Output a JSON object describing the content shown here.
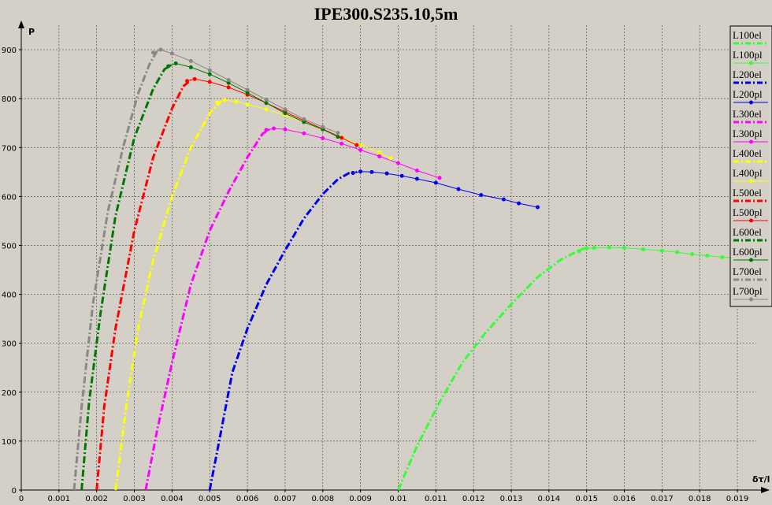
{
  "chart_data": {
    "type": "line",
    "title": "IPE300.S235.10,5m",
    "xlabel": "δτ/l",
    "ylabel": "P",
    "xlim": [
      0,
      0.0195
    ],
    "ylim": [
      0,
      950
    ],
    "xticks": [
      0,
      0.001,
      0.002,
      0.003,
      0.004,
      0.005,
      0.006,
      0.007,
      0.008,
      0.009,
      0.01,
      0.011,
      0.012,
      0.013,
      0.014,
      0.015,
      0.016,
      0.017,
      0.018,
      0.019
    ],
    "xtick_labels": [
      "0",
      "0.001",
      "0.002",
      "0.003",
      "0.004",
      "0.005",
      "0.006",
      "0.007",
      "0.008",
      "0.009",
      "0.01",
      "0.011",
      "0.012",
      "0.013",
      "0.014",
      "0.015",
      "0.016",
      "0.017",
      "0.018",
      "0.019"
    ],
    "yticks": [
      0,
      100,
      200,
      300,
      400,
      500,
      600,
      700,
      800,
      900
    ],
    "ytick_labels": [
      "0",
      "100",
      "200",
      "300",
      "400",
      "500",
      "600",
      "700",
      "800",
      "900"
    ],
    "grid": true,
    "legend_position": "right",
    "series": [
      {
        "name": "L100el",
        "color": "#33ff33",
        "style": "dashdot",
        "x": [
          0.01,
          0.0105,
          0.0111,
          0.0117,
          0.0123,
          0.013,
          0.0137,
          0.0143,
          0.0148,
          0.015
        ],
        "y": [
          0,
          90,
          180,
          260,
          320,
          380,
          435,
          470,
          490,
          495
        ]
      },
      {
        "name": "L100pl",
        "color": "#33ff33",
        "style": "dots",
        "x": [
          0.0148,
          0.015,
          0.0152,
          0.0156,
          0.016,
          0.0165,
          0.017,
          0.0174,
          0.0178,
          0.0182,
          0.0186,
          0.0195
        ],
        "y": [
          488,
          494,
          495,
          496,
          495,
          492,
          489,
          486,
          482,
          479,
          476,
          472
        ]
      },
      {
        "name": "L200el",
        "color": "#0000ee",
        "style": "dashdot",
        "x": [
          0.005,
          0.0053,
          0.0056,
          0.006,
          0.0065,
          0.007,
          0.0075,
          0.008,
          0.0084,
          0.0087,
          0.0089
        ],
        "y": [
          0,
          120,
          240,
          330,
          420,
          490,
          555,
          605,
          635,
          648,
          650
        ]
      },
      {
        "name": "L200pl",
        "color": "#0000ee",
        "style": "dots",
        "x": [
          0.0088,
          0.009,
          0.0093,
          0.0097,
          0.0101,
          0.0105,
          0.011,
          0.0116,
          0.0122,
          0.0128,
          0.0132,
          0.0137
        ],
        "y": [
          648,
          651,
          650,
          647,
          642,
          636,
          628,
          615,
          603,
          594,
          586,
          578
        ]
      },
      {
        "name": "L300el",
        "color": "#ff00ff",
        "style": "dashdot",
        "x": [
          0.0033,
          0.0036,
          0.004,
          0.0045,
          0.005,
          0.0055,
          0.006,
          0.0064,
          0.0066
        ],
        "y": [
          0,
          120,
          260,
          420,
          530,
          610,
          680,
          728,
          738
        ]
      },
      {
        "name": "L300pl",
        "color": "#ff00ff",
        "style": "dots",
        "x": [
          0.0065,
          0.0067,
          0.007,
          0.0075,
          0.008,
          0.0085,
          0.009,
          0.0095,
          0.01,
          0.0105,
          0.0111
        ],
        "y": [
          736,
          739,
          737,
          729,
          719,
          708,
          695,
          682,
          668,
          653,
          638
        ]
      },
      {
        "name": "L400el",
        "color": "#ffff00",
        "style": "dashdot",
        "x": [
          0.0025,
          0.0028,
          0.0031,
          0.0035,
          0.004,
          0.0045,
          0.005,
          0.0053
        ],
        "y": [
          0,
          180,
          330,
          470,
          600,
          700,
          770,
          795
        ]
      },
      {
        "name": "L400pl",
        "color": "#ffff00",
        "style": "dots",
        "x": [
          0.0052,
          0.0054,
          0.0057,
          0.006,
          0.0065,
          0.007,
          0.0075,
          0.008,
          0.0085,
          0.009,
          0.0095,
          0.0098
        ],
        "y": [
          792,
          797,
          794,
          788,
          778,
          766,
          752,
          737,
          721,
          705,
          690,
          678
        ]
      },
      {
        "name": "L500el",
        "color": "#ff0000",
        "style": "dashdot",
        "x": [
          0.002,
          0.0022,
          0.0025,
          0.003,
          0.0035,
          0.004,
          0.0043,
          0.0045
        ],
        "y": [
          0,
          170,
          330,
          530,
          680,
          780,
          825,
          838
        ]
      },
      {
        "name": "L500pl",
        "color": "#ff0000",
        "style": "dots",
        "x": [
          0.0044,
          0.0046,
          0.005,
          0.0055,
          0.006,
          0.0065,
          0.007,
          0.0075,
          0.008,
          0.0085,
          0.0089
        ],
        "y": [
          836,
          840,
          834,
          823,
          808,
          791,
          773,
          755,
          738,
          720,
          705
        ]
      },
      {
        "name": "L600el",
        "color": "#007700",
        "style": "dashdot",
        "x": [
          0.0016,
          0.0018,
          0.0021,
          0.0025,
          0.003,
          0.0035,
          0.0038,
          0.004
        ],
        "y": [
          0,
          180,
          360,
          560,
          720,
          820,
          860,
          870
        ]
      },
      {
        "name": "L600pl",
        "color": "#007700",
        "style": "dots",
        "x": [
          0.0039,
          0.0041,
          0.0045,
          0.005,
          0.0055,
          0.006,
          0.0065,
          0.007,
          0.0075,
          0.008,
          0.0084
        ],
        "y": [
          866,
          872,
          864,
          850,
          832,
          812,
          791,
          770,
          752,
          737,
          722
        ]
      },
      {
        "name": "L700el",
        "color": "#888888",
        "style": "dashdot",
        "x": [
          0.0014,
          0.0016,
          0.0019,
          0.0023,
          0.0027,
          0.0031,
          0.0034,
          0.0036
        ],
        "y": [
          0,
          170,
          380,
          570,
          700,
          810,
          870,
          897
        ]
      },
      {
        "name": "L700pl",
        "color": "#888888",
        "style": "dots",
        "x": [
          0.0035,
          0.0037,
          0.004,
          0.0045,
          0.005,
          0.0055,
          0.006,
          0.0065,
          0.007,
          0.0075,
          0.008,
          0.0084
        ],
        "y": [
          894,
          900,
          892,
          877,
          858,
          838,
          818,
          798,
          778,
          758,
          742,
          730
        ]
      }
    ]
  }
}
